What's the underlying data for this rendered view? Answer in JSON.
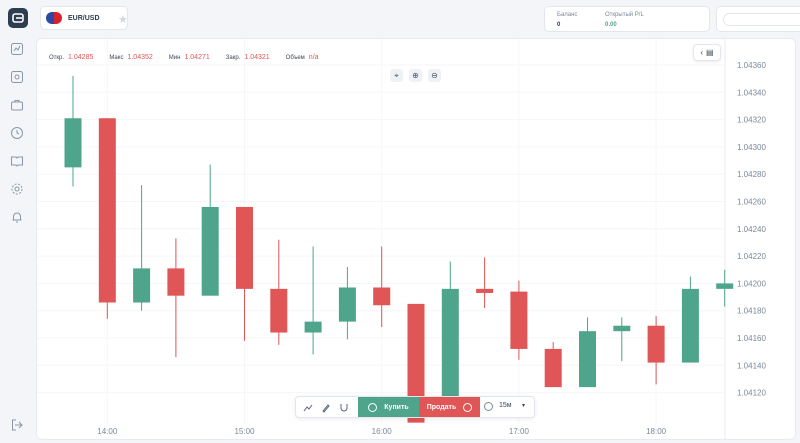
{
  "topbar": {
    "pair": "EUR/USD",
    "balance_label": "Баланс",
    "balance_value": "0",
    "pl_label": "Открытый P/L",
    "pl_value": "0.00"
  },
  "sidebar": {
    "items": [
      "chart-icon",
      "analytics-icon",
      "portfolio-icon",
      "history-icon",
      "education-icon",
      "settings-icon",
      "notifications-icon",
      "logout-icon"
    ]
  },
  "ohlc": {
    "open_label": "Откр.",
    "open_value": "1.04285",
    "high_label": "Макс",
    "high_value": "1.04352",
    "low_label": "Мин",
    "low_value": "1.04271",
    "close_label": "Закр.",
    "close_value": "1.04321",
    "volume_label": "Объем",
    "volume_value": "n/a"
  },
  "tradebar": {
    "buy_label": "Купить",
    "sell_label": "Продать",
    "timeframe": "15м"
  },
  "colors": {
    "up": "#4fa58c",
    "down": "#e05555",
    "accent": "#2c3e50"
  },
  "chart_data": {
    "type": "candlestick",
    "y_ticks": [
      "1.04360",
      "1.04340",
      "1.04320",
      "1.04300",
      "1.04280",
      "1.04260",
      "1.04240",
      "1.04220",
      "1.04200",
      "1.04180",
      "1.04160",
      "1.04140",
      "1.04120"
    ],
    "x_ticks": [
      "14:00",
      "15:00",
      "16:00",
      "17:00",
      "18:00"
    ],
    "ylim": [
      1.0411,
      1.0437
    ],
    "candles": [
      {
        "t": "13:45",
        "o": 1.04285,
        "h": 1.04352,
        "l": 1.04271,
        "c": 1.04321
      },
      {
        "t": "14:00",
        "o": 1.04321,
        "h": 1.04321,
        "l": 1.04174,
        "c": 1.04186
      },
      {
        "t": "14:15",
        "o": 1.04186,
        "h": 1.04272,
        "l": 1.0418,
        "c": 1.04211
      },
      {
        "t": "14:30",
        "o": 1.04211,
        "h": 1.04233,
        "l": 1.04146,
        "c": 1.04191
      },
      {
        "t": "14:45",
        "o": 1.04191,
        "h": 1.04287,
        "l": 1.04191,
        "c": 1.04256
      },
      {
        "t": "15:00",
        "o": 1.04256,
        "h": 1.04256,
        "l": 1.04158,
        "c": 1.04196
      },
      {
        "t": "15:15",
        "o": 1.04196,
        "h": 1.04232,
        "l": 1.04155,
        "c": 1.04164
      },
      {
        "t": "15:30",
        "o": 1.04164,
        "h": 1.04227,
        "l": 1.04148,
        "c": 1.04172
      },
      {
        "t": "15:45",
        "o": 1.04172,
        "h": 1.04212,
        "l": 1.04159,
        "c": 1.04197
      },
      {
        "t": "16:00",
        "o": 1.04197,
        "h": 1.04227,
        "l": 1.04168,
        "c": 1.04184
      },
      {
        "t": "16:15",
        "o": 1.04185,
        "h": 1.04185,
        "l": 1.04098,
        "c": 1.04098
      },
      {
        "t": "16:30",
        "o": 1.04105,
        "h": 1.04216,
        "l": 1.04105,
        "c": 1.04196
      },
      {
        "t": "16:45",
        "o": 1.04196,
        "h": 1.04219,
        "l": 1.04182,
        "c": 1.04193
      },
      {
        "t": "17:00",
        "o": 1.04194,
        "h": 1.04202,
        "l": 1.04144,
        "c": 1.04152
      },
      {
        "t": "17:15",
        "o": 1.04152,
        "h": 1.04157,
        "l": 1.04126,
        "c": 1.04124
      },
      {
        "t": "17:30",
        "o": 1.04124,
        "h": 1.04175,
        "l": 1.04124,
        "c": 1.04165
      },
      {
        "t": "17:45",
        "o": 1.04165,
        "h": 1.04175,
        "l": 1.04143,
        "c": 1.04169
      },
      {
        "t": "18:00",
        "o": 1.04169,
        "h": 1.04176,
        "l": 1.04126,
        "c": 1.04142
      },
      {
        "t": "18:15",
        "o": 1.04142,
        "h": 1.04205,
        "l": 1.04142,
        "c": 1.04196
      },
      {
        "t": "18:30",
        "o": 1.04196,
        "h": 1.0421,
        "l": 1.04183,
        "c": 1.042
      }
    ]
  }
}
